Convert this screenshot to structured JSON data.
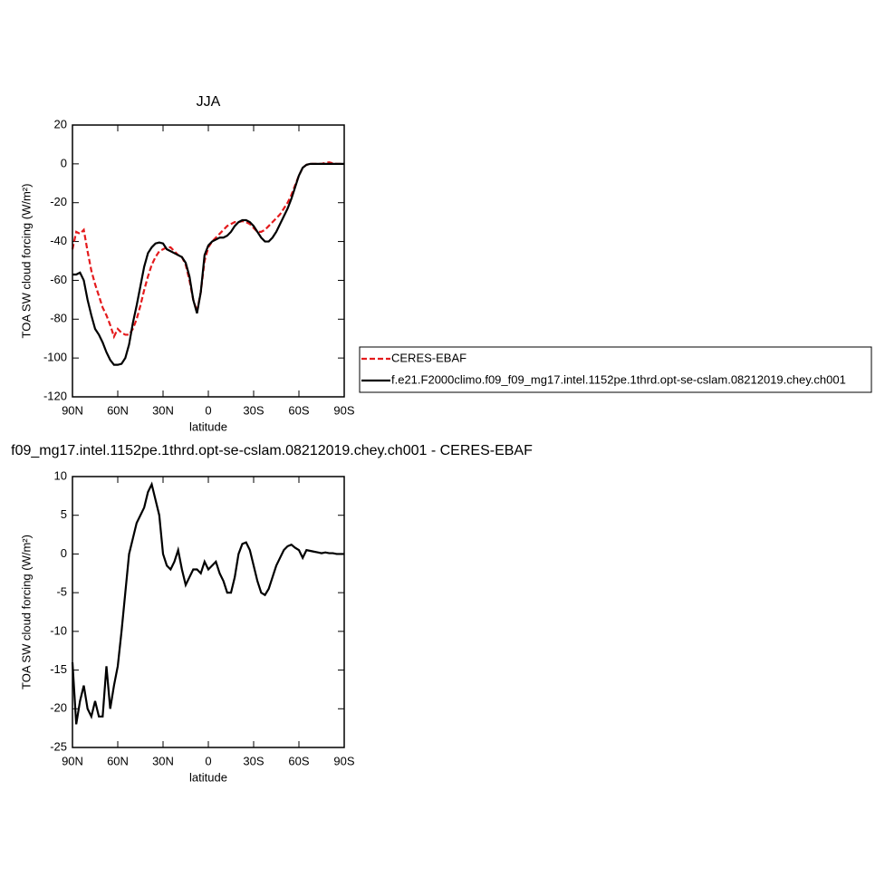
{
  "chart_data": [
    {
      "type": "line",
      "title": "JJA",
      "xlabel": "latitude",
      "ylabel": "TOA SW cloud forcing (W/m²)",
      "x": [
        90,
        87.5,
        85,
        82.5,
        80,
        77.5,
        75,
        72.5,
        70,
        67.5,
        65,
        62.5,
        60,
        57.5,
        55,
        52.5,
        50,
        47.5,
        45,
        42.5,
        40,
        37.5,
        35,
        32.5,
        30,
        27.5,
        25,
        22.5,
        20,
        17.5,
        15,
        12.5,
        10,
        7.5,
        5,
        2.5,
        0,
        -2.5,
        -5,
        -7.5,
        -10,
        -12.5,
        -15,
        -17.5,
        -20,
        -22.5,
        -25,
        -27.5,
        -30,
        -32.5,
        -35,
        -37.5,
        -40,
        -42.5,
        -45,
        -47.5,
        -50,
        -52.5,
        -55,
        -57.5,
        -60,
        -62.5,
        -65,
        -67.5,
        -70,
        -72.5,
        -75,
        -77.5,
        -80,
        -82.5,
        -85,
        -87.5,
        -90
      ],
      "series": [
        {
          "name": "CERES-EBAF",
          "color": "#e41a1c",
          "style": "dashed",
          "values": [
            -44,
            -35,
            -36,
            -34,
            -45,
            -55,
            -62,
            -68,
            -74,
            -78,
            -83,
            -89,
            -85,
            -87,
            -88,
            -88,
            -85,
            -80,
            -73,
            -65,
            -58,
            -52,
            -48,
            -45,
            -44,
            -43,
            -43,
            -45,
            -47,
            -48,
            -52,
            -60,
            -70,
            -76,
            -66,
            -50,
            -43,
            -40,
            -38,
            -36,
            -34,
            -32,
            -31,
            -30,
            -30,
            -29.5,
            -30,
            -31,
            -33,
            -35,
            -35,
            -34,
            -32,
            -30,
            -28,
            -26,
            -23,
            -20,
            -16,
            -11,
            -6,
            -2,
            -0.5,
            0,
            0,
            0,
            0,
            0.5,
            0.8,
            0.3,
            0,
            0,
            0
          ]
        },
        {
          "name": "f.e21.F2000climo.f09_f09_mg17.intel.1152pe.1thrd.opt-se-cslam.08212019.chey.ch001",
          "color": "#000000",
          "style": "solid",
          "values": [
            -57,
            -57,
            -56,
            -60,
            -70,
            -78,
            -85,
            -88,
            -92,
            -97,
            -101,
            -103.5,
            -103.5,
            -103,
            -100,
            -93,
            -82,
            -73,
            -63,
            -53,
            -46,
            -43,
            -41,
            -40.5,
            -41,
            -44,
            -45,
            -46,
            -47,
            -48,
            -51,
            -58,
            -70,
            -77,
            -66,
            -47,
            -42,
            -40,
            -39,
            -38,
            -38,
            -37,
            -35,
            -32,
            -30,
            -29,
            -29,
            -30,
            -32,
            -35,
            -38,
            -40,
            -40,
            -38,
            -35,
            -31,
            -27,
            -23,
            -18,
            -12,
            -6,
            -2,
            -0.5,
            0,
            0,
            0,
            0,
            0,
            0,
            0,
            0,
            0,
            0
          ]
        }
      ],
      "xlim": [
        90,
        -90
      ],
      "xticks": [
        {
          "value": 90,
          "label": "90N"
        },
        {
          "value": 60,
          "label": "60N"
        },
        {
          "value": 30,
          "label": "30N"
        },
        0,
        {
          "value": -30,
          "label": "30S"
        },
        {
          "value": -60,
          "label": "60S"
        },
        {
          "value": -90,
          "label": "90S"
        }
      ],
      "ylim": [
        -120,
        20
      ],
      "yticks": [
        -120,
        -100,
        -80,
        -60,
        -40,
        -20,
        0,
        20
      ],
      "legend": "right"
    },
    {
      "type": "line",
      "title": "f09_mg17.intel.1152pe.1thrd.opt-se-cslam.08212019.chey.ch001 - CERES-EBAF",
      "xlabel": "latitude",
      "ylabel": "TOA SW cloud forcing (W/m²)",
      "x": [
        90,
        87.5,
        85,
        82.5,
        80,
        77.5,
        75,
        72.5,
        70,
        67.5,
        65,
        62.5,
        60,
        57.5,
        55,
        52.5,
        50,
        47.5,
        45,
        42.5,
        40,
        37.5,
        35,
        32.5,
        30,
        27.5,
        25,
        22.5,
        20,
        17.5,
        15,
        12.5,
        10,
        7.5,
        5,
        2.5,
        0,
        -2.5,
        -5,
        -7.5,
        -10,
        -12.5,
        -15,
        -17.5,
        -20,
        -22.5,
        -25,
        -27.5,
        -30,
        -32.5,
        -35,
        -37.5,
        -40,
        -42.5,
        -45,
        -47.5,
        -50,
        -52.5,
        -55,
        -57.5,
        -60,
        -62.5,
        -65,
        -67.5,
        -70,
        -72.5,
        -75,
        -77.5,
        -80,
        -82.5,
        -85,
        -87.5,
        -90
      ],
      "series": [
        {
          "color": "#000000",
          "style": "solid",
          "values": [
            -14,
            -22,
            -19,
            -17,
            -20,
            -21,
            -19,
            -21,
            -21,
            -14.5,
            -20,
            -17,
            -14.5,
            -10,
            -5,
            0,
            2,
            4,
            5,
            6,
            8,
            9,
            7,
            5,
            0,
            -1.5,
            -2,
            -1,
            0.5,
            -2,
            -4,
            -3,
            -2,
            -2,
            -2.5,
            -1,
            -2,
            -1.5,
            -1,
            -2.5,
            -3.5,
            -5,
            -5,
            -3,
            0,
            1.3,
            1.5,
            0.5,
            -1.5,
            -3.5,
            -5,
            -5.3,
            -4.5,
            -3,
            -1.5,
            -0.5,
            0.5,
            1,
            1.2,
            0.8,
            0.5,
            -0.5,
            0.5,
            0.4,
            0.3,
            0.2,
            0.1,
            0.2,
            0.1,
            0.1,
            0,
            0,
            0
          ]
        }
      ],
      "xlim": [
        90,
        -90
      ],
      "xticks": [
        {
          "value": 90,
          "label": "90N"
        },
        {
          "value": 60,
          "label": "60N"
        },
        {
          "value": 30,
          "label": "30N"
        },
        0,
        {
          "value": -30,
          "label": "30S"
        },
        {
          "value": -60,
          "label": "60S"
        },
        {
          "value": -90,
          "label": "90S"
        }
      ],
      "ylim": [
        -25,
        10
      ],
      "yticks": [
        -25,
        -20,
        -15,
        -10,
        -5,
        0,
        5,
        10
      ]
    }
  ]
}
